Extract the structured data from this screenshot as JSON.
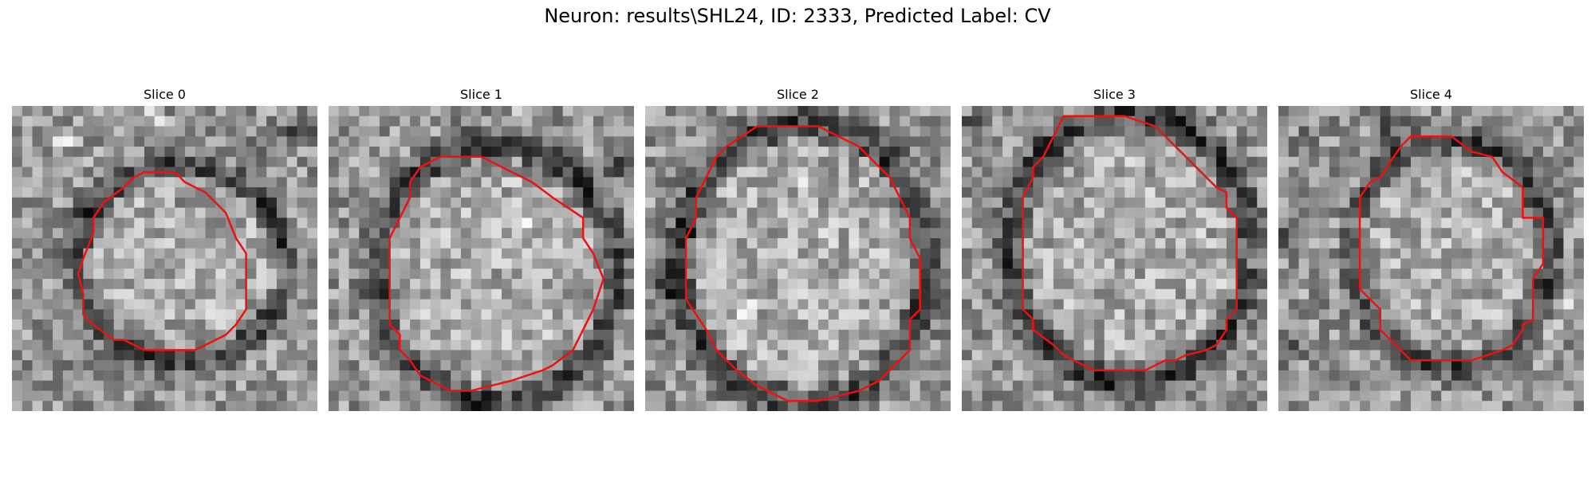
{
  "figure": {
    "title": "Neuron: results\\SHL24, ID: 2333, Predicted Label: CV"
  },
  "outline_color": "#ee1111",
  "panels": [
    {
      "title": "Slice 0",
      "grid": 30,
      "outline": [
        [
          16,
          6.5
        ],
        [
          17,
          7.5
        ],
        [
          19,
          8.5
        ],
        [
          21,
          10.5
        ],
        [
          22,
          13
        ],
        [
          23,
          14.5
        ],
        [
          23,
          17
        ],
        [
          23,
          20
        ],
        [
          22,
          21.5
        ],
        [
          21,
          22.5
        ],
        [
          19,
          23.5
        ],
        [
          18,
          24
        ],
        [
          17,
          24
        ],
        [
          14,
          24
        ],
        [
          13,
          24
        ],
        [
          11,
          23
        ],
        [
          10,
          23
        ],
        [
          8,
          21.5
        ],
        [
          7,
          20.5
        ],
        [
          7,
          18.5
        ],
        [
          6.5,
          16.5
        ],
        [
          7,
          15
        ],
        [
          8,
          12.5
        ],
        [
          8,
          11
        ],
        [
          9,
          9.5
        ],
        [
          11,
          8
        ],
        [
          12,
          7
        ],
        [
          13,
          6.5
        ]
      ],
      "ellipse": {
        "cx": 16.5,
        "cy": 15.5,
        "rx": 10,
        "ry": 9.5
      },
      "dark_spots": [
        [
          18,
          9,
          1.2
        ],
        [
          7,
          10,
          1
        ],
        [
          28,
          2,
          1.5
        ],
        [
          25,
          4,
          1.3
        ],
        [
          4,
          25,
          1
        ]
      ],
      "light_spots": [
        [
          14,
          1,
          0.8
        ],
        [
          26,
          17,
          1
        ],
        [
          5,
          3,
          1
        ]
      ]
    },
    {
      "title": "Slice 1",
      "grid": 30,
      "outline": [
        [
          11,
          5
        ],
        [
          15,
          5
        ],
        [
          18,
          6.5
        ],
        [
          20,
          7.5
        ],
        [
          22,
          9
        ],
        [
          25,
          11
        ],
        [
          25,
          13
        ],
        [
          26,
          14.5
        ],
        [
          27,
          17
        ],
        [
          26,
          20
        ],
        [
          25,
          22
        ],
        [
          24,
          24
        ],
        [
          22,
          25.5
        ],
        [
          21,
          26
        ],
        [
          18,
          27
        ],
        [
          16,
          27.5
        ],
        [
          14,
          28
        ],
        [
          12,
          28
        ],
        [
          10,
          27
        ],
        [
          9,
          26.5
        ],
        [
          8,
          25
        ],
        [
          7,
          24
        ],
        [
          7,
          22.5
        ],
        [
          6,
          21.5
        ],
        [
          6,
          19
        ],
        [
          6,
          16
        ],
        [
          6,
          13
        ],
        [
          7,
          11
        ],
        [
          8,
          9
        ],
        [
          8,
          7.5
        ],
        [
          9,
          6
        ]
      ],
      "ellipse": {
        "cx": 16.5,
        "cy": 16.5,
        "rx": 11.5,
        "ry": 12.5
      },
      "dark_spots": [
        [
          28,
          6,
          1.5
        ],
        [
          3,
          9,
          1.2
        ],
        [
          15,
          29,
          1
        ]
      ],
      "light_spots": [
        [
          11,
          13,
          0.9
        ],
        [
          19,
          12,
          0.8
        ],
        [
          19,
          1,
          0.8
        ]
      ]
    },
    {
      "title": "Slice 2",
      "grid": 30,
      "outline": [
        [
          11,
          2
        ],
        [
          17,
          2
        ],
        [
          19,
          3
        ],
        [
          21,
          4
        ],
        [
          23,
          6
        ],
        [
          24,
          7
        ],
        [
          25,
          9
        ],
        [
          26,
          11
        ],
        [
          26,
          13
        ],
        [
          27,
          15
        ],
        [
          27,
          18
        ],
        [
          27,
          20
        ],
        [
          26,
          21
        ],
        [
          26,
          24
        ],
        [
          25,
          25
        ],
        [
          23,
          27
        ],
        [
          22,
          27.5
        ],
        [
          21,
          28
        ],
        [
          19,
          28.5
        ],
        [
          17,
          29
        ],
        [
          14,
          29
        ],
        [
          12,
          28
        ],
        [
          11,
          27.5
        ],
        [
          9,
          26
        ],
        [
          8,
          25
        ],
        [
          7,
          24
        ],
        [
          6,
          22
        ],
        [
          5,
          20.5
        ],
        [
          4,
          19
        ],
        [
          4,
          16.5
        ],
        [
          4,
          13
        ],
        [
          5,
          11
        ],
        [
          5,
          9
        ],
        [
          6,
          7
        ],
        [
          7,
          5
        ],
        [
          8,
          4
        ]
      ],
      "ellipse": {
        "cx": 15.5,
        "cy": 15.5,
        "rx": 12,
        "ry": 13.5
      },
      "dark_spots": [
        [
          2,
          18,
          1.5
        ],
        [
          1,
          22,
          1.5
        ],
        [
          4,
          12,
          1
        ]
      ],
      "light_spots": [
        [
          15,
          7,
          0.8
        ],
        [
          18,
          12,
          0.8
        ],
        [
          10,
          20,
          0.8
        ]
      ]
    },
    {
      "title": "Slice 3",
      "grid": 30,
      "outline": [
        [
          10,
          1
        ],
        [
          16,
          1
        ],
        [
          19,
          2
        ],
        [
          21,
          4
        ],
        [
          22,
          5
        ],
        [
          23,
          6
        ],
        [
          25,
          8
        ],
        [
          26,
          8.5
        ],
        [
          26,
          10
        ],
        [
          27,
          11
        ],
        [
          27,
          14
        ],
        [
          27,
          17
        ],
        [
          27,
          20
        ],
        [
          26,
          21
        ],
        [
          26,
          22
        ],
        [
          25,
          23.5
        ],
        [
          24,
          24
        ],
        [
          22,
          24.5
        ],
        [
          21,
          25
        ],
        [
          20,
          25
        ],
        [
          18,
          26
        ],
        [
          13,
          26
        ],
        [
          11,
          25
        ],
        [
          10,
          24.5
        ],
        [
          9,
          23.5
        ],
        [
          7,
          22
        ],
        [
          7,
          21
        ],
        [
          6,
          20
        ],
        [
          6,
          17
        ],
        [
          6,
          14
        ],
        [
          6,
          12
        ],
        [
          6,
          9
        ],
        [
          7,
          7
        ],
        [
          7,
          6
        ],
        [
          8,
          5
        ],
        [
          9,
          3
        ]
      ],
      "ellipse": {
        "cx": 16.5,
        "cy": 14,
        "rx": 11.5,
        "ry": 13
      },
      "dark_spots": [
        [
          14,
          27,
          1.5
        ],
        [
          1,
          2,
          1.3
        ],
        [
          8,
          5,
          1.2
        ],
        [
          22,
          2,
          1
        ]
      ],
      "light_spots": [
        [
          12,
          1,
          0.8
        ],
        [
          26,
          18,
          0.8
        ],
        [
          29,
          15,
          0.8
        ]
      ]
    },
    {
      "title": "Slice 4",
      "grid": 30,
      "outline": [
        [
          13,
          3
        ],
        [
          17,
          3
        ],
        [
          19,
          4.5
        ],
        [
          21,
          5
        ],
        [
          22,
          6.5
        ],
        [
          24,
          8
        ],
        [
          24,
          11
        ],
        [
          26,
          11
        ],
        [
          26,
          14
        ],
        [
          26,
          15.5
        ],
        [
          25,
          17
        ],
        [
          25,
          18.5
        ],
        [
          25,
          21
        ],
        [
          24,
          21.5
        ],
        [
          24,
          22
        ],
        [
          23,
          23.5
        ],
        [
          22,
          24
        ],
        [
          19,
          25
        ],
        [
          16,
          25
        ],
        [
          13,
          25
        ],
        [
          12,
          24
        ],
        [
          11,
          23
        ],
        [
          10,
          22
        ],
        [
          10,
          20
        ],
        [
          9,
          19
        ],
        [
          8,
          18
        ],
        [
          8,
          15
        ],
        [
          8,
          12
        ],
        [
          8,
          9
        ],
        [
          9,
          7.5
        ],
        [
          10,
          7
        ],
        [
          12,
          4
        ]
      ],
      "ellipse": {
        "cx": 17,
        "cy": 14.5,
        "rx": 9.5,
        "ry": 11
      },
      "dark_spots": [
        [
          1,
          13,
          1.5
        ],
        [
          1,
          24,
          1.3
        ],
        [
          11,
          2,
          1.5
        ],
        [
          3,
          3,
          1
        ]
      ],
      "light_spots": [
        [
          8,
          11,
          0.8
        ],
        [
          27,
          22,
          1
        ],
        [
          29,
          20,
          0.8
        ]
      ]
    }
  ]
}
